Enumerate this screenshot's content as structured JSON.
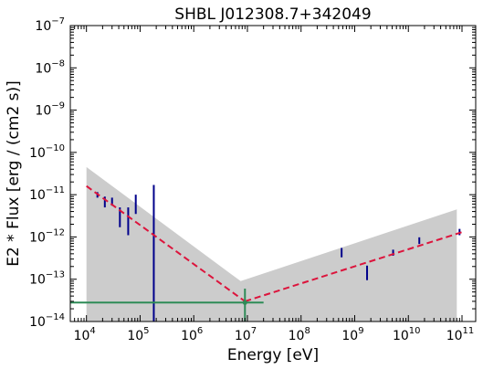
{
  "chart_data": {
    "type": "scatter",
    "title": "SHBL J012308.7+342049",
    "xlabel": "Energy [eV]",
    "ylabel": "E2 * Flux [erg / (cm2 s)]",
    "xscale": "log",
    "yscale": "log",
    "xlim": [
      5000,
      180000000000
    ],
    "ylim": [
      1e-14,
      1e-07
    ],
    "x_ticks": [
      {
        "base": "10",
        "exp": "4",
        "value": 10000
      },
      {
        "base": "10",
        "exp": "5",
        "value": 100000
      },
      {
        "base": "10",
        "exp": "6",
        "value": 1000000
      },
      {
        "base": "10",
        "exp": "7",
        "value": 10000000
      },
      {
        "base": "10",
        "exp": "8",
        "value": 100000000
      },
      {
        "base": "10",
        "exp": "9",
        "value": 1000000000
      },
      {
        "base": "10",
        "exp": "10",
        "value": 10000000000
      },
      {
        "base": "10",
        "exp": "11",
        "value": 100000000000
      }
    ],
    "y_ticks": [
      {
        "base": "10",
        "exp": "−14",
        "value": 1e-14
      },
      {
        "base": "10",
        "exp": "−13",
        "value": 1e-13
      },
      {
        "base": "10",
        "exp": "−12",
        "value": 1e-12
      },
      {
        "base": "10",
        "exp": "−11",
        "value": 1e-11
      },
      {
        "base": "10",
        "exp": "−10",
        "value": 1e-10
      },
      {
        "base": "10",
        "exp": "−9",
        "value": 1e-09
      },
      {
        "base": "10",
        "exp": "−8",
        "value": 1e-08
      },
      {
        "base": "10",
        "exp": "−7",
        "value": 1e-07
      }
    ],
    "band": {
      "color": "#cccccc",
      "upper": [
        [
          10000,
          4.5e-11
        ],
        [
          7500000,
          9e-14
        ],
        [
          80000000000,
          4.5e-12
        ]
      ],
      "lower": [
        [
          10000,
          1e-14
        ],
        [
          80000000000,
          1e-14
        ]
      ]
    },
    "fit_lines": [
      {
        "color": "#dc143c",
        "style": "dashed",
        "points": [
          [
            10000,
            1.6e-11
          ],
          [
            9000000,
            3e-14
          ]
        ]
      },
      {
        "color": "#dc143c",
        "style": "dashed",
        "points": [
          [
            9000000,
            3e-14
          ],
          [
            100000000000,
            1.3e-12
          ]
        ]
      }
    ],
    "blue_points": {
      "color": "#00008b",
      "points": [
        {
          "x": 16000,
          "y": 1e-11,
          "ylo": 8.5e-12,
          "yhi": 1.15e-11
        },
        {
          "x": 22000,
          "y": 7e-12,
          "ylo": 5e-12,
          "yhi": 9e-12
        },
        {
          "x": 30000,
          "y": 7e-12,
          "ylo": 5.5e-12,
          "yhi": 8.5e-12
        },
        {
          "x": 42000,
          "y": 3.5e-12,
          "ylo": 1.7e-12,
          "yhi": 5e-12
        },
        {
          "x": 60000,
          "y": 3e-12,
          "ylo": 1.1e-12,
          "yhi": 5e-12
        },
        {
          "x": 83000,
          "y": 6e-12,
          "ylo": 3.5e-12,
          "yhi": 1e-11
        },
        {
          "x": 180000,
          "y": 3e-14,
          "ylo": 1e-14,
          "yhi": 1.7e-11
        },
        {
          "x": 570000000,
          "y": 4.3e-13,
          "ylo": 3.3e-13,
          "yhi": 5.5e-13
        },
        {
          "x": 1700000000,
          "y": 1.5e-13,
          "ylo": 9.5e-14,
          "yhi": 2.1e-13
        },
        {
          "x": 5200000000,
          "y": 4.2e-13,
          "ylo": 3.6e-13,
          "yhi": 5e-13
        },
        {
          "x": 16000000000,
          "y": 8.2e-13,
          "ylo": 6.8e-13,
          "yhi": 9.8e-13
        },
        {
          "x": 90000000000,
          "y": 1.3e-12,
          "ylo": 1.1e-12,
          "yhi": 1.55e-12
        }
      ]
    },
    "green_point": {
      "color": "#2e8b57",
      "x": 9000000,
      "y": 2.8e-14,
      "xlo": 5000,
      "xhi": 20000000,
      "ylo": 1e-14,
      "yhi": 6e-14
    }
  }
}
